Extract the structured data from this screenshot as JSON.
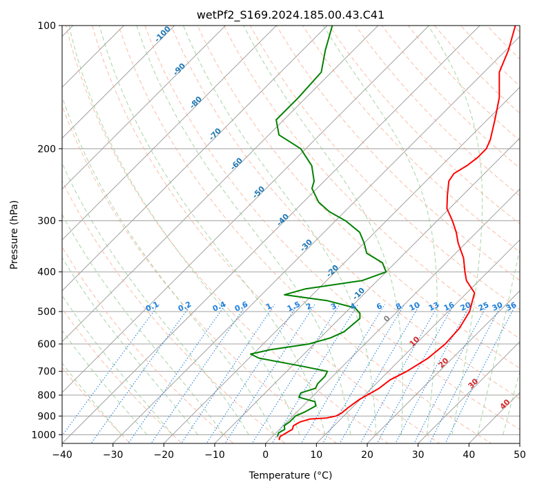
{
  "chart_data": {
    "type": "line",
    "chart_kind": "skew-T log-P diagram",
    "title": "wetPf2_S169.2024.185.00.43.C41",
    "xlabel": "Temperature (°C)",
    "ylabel": "Pressure (hPa)",
    "xlim": [
      -40,
      50
    ],
    "ylim": [
      1050,
      100
    ],
    "y_scale": "log",
    "grid": true,
    "x_ticks": [
      -40,
      -30,
      -20,
      -10,
      0,
      10,
      20,
      30,
      40,
      50
    ],
    "y_ticks": [
      100,
      200,
      300,
      400,
      500,
      600,
      700,
      800,
      900,
      1000
    ],
    "series": [
      {
        "role": "temperature",
        "color": "#ff0000",
        "points": [
          [
            1030,
            2
          ],
          [
            1010,
            1.5
          ],
          [
            990,
            2
          ],
          [
            970,
            2.5
          ],
          [
            950,
            2
          ],
          [
            930,
            2.6
          ],
          [
            915,
            4
          ],
          [
            910,
            7
          ],
          [
            900,
            8.5
          ],
          [
            885,
            9
          ],
          [
            860,
            9.2
          ],
          [
            820,
            9.8
          ],
          [
            800,
            10.5
          ],
          [
            770,
            11.5
          ],
          [
            735,
            12
          ],
          [
            700,
            13.6
          ],
          [
            650,
            15.2
          ],
          [
            600,
            15.8
          ],
          [
            550,
            15.5
          ],
          [
            500,
            14.2
          ],
          [
            450,
            11.5
          ],
          [
            420,
            7.5
          ],
          [
            400,
            5.5
          ],
          [
            370,
            2.5
          ],
          [
            340,
            -1.5
          ],
          [
            320,
            -4
          ],
          [
            300,
            -7
          ],
          [
            280,
            -10.5
          ],
          [
            260,
            -13
          ],
          [
            240,
            -15.5
          ],
          [
            230,
            -16
          ],
          [
            220,
            -15
          ],
          [
            210,
            -14.5
          ],
          [
            200,
            -14.5
          ],
          [
            190,
            -15.5
          ],
          [
            170,
            -18.5
          ],
          [
            150,
            -22
          ],
          [
            130,
            -27
          ],
          [
            115,
            -29.5
          ],
          [
            100,
            -33
          ]
        ]
      },
      {
        "role": "dewpoint",
        "color": "#008000",
        "points": [
          [
            1010,
            1
          ],
          [
            990,
            0.5
          ],
          [
            970,
            1
          ],
          [
            950,
            0.2
          ],
          [
            930,
            0.5
          ],
          [
            900,
            0.5
          ],
          [
            880,
            1.5
          ],
          [
            850,
            2.5
          ],
          [
            830,
            1.5
          ],
          [
            810,
            -2.5
          ],
          [
            790,
            -3
          ],
          [
            770,
            -1
          ],
          [
            750,
            -1.5
          ],
          [
            720,
            -1.5
          ],
          [
            700,
            -2
          ],
          [
            680,
            -8
          ],
          [
            650,
            -18
          ],
          [
            635,
            -20.5
          ],
          [
            620,
            -17.5
          ],
          [
            600,
            -11
          ],
          [
            580,
            -8
          ],
          [
            560,
            -6.5
          ],
          [
            520,
            -6
          ],
          [
            505,
            -7
          ],
          [
            490,
            -9
          ],
          [
            470,
            -16
          ],
          [
            455,
            -25.5
          ],
          [
            440,
            -22.5
          ],
          [
            420,
            -13
          ],
          [
            400,
            -10
          ],
          [
            380,
            -12.5
          ],
          [
            360,
            -17.5
          ],
          [
            340,
            -20
          ],
          [
            320,
            -23
          ],
          [
            300,
            -28
          ],
          [
            285,
            -33
          ],
          [
            270,
            -37
          ],
          [
            250,
            -41
          ],
          [
            240,
            -42
          ],
          [
            220,
            -45.5
          ],
          [
            200,
            -51
          ],
          [
            185,
            -58
          ],
          [
            170,
            -61.5
          ],
          [
            150,
            -61.5
          ],
          [
            130,
            -62
          ],
          [
            115,
            -65.5
          ],
          [
            100,
            -69
          ]
        ]
      }
    ],
    "dry_adiabat_labels": [
      "-100",
      "-90",
      "-80",
      "-70",
      "-60",
      "-50",
      "-40",
      "-30",
      "-20",
      "-10"
    ],
    "moist_adiabat_labels": [
      "0",
      "10",
      "20",
      "30",
      "40"
    ],
    "mixing_ratio_labels": [
      "0.1",
      "0.2",
      "0.4",
      "0.6",
      "1",
      "1.5",
      "2",
      "3",
      "4",
      "6",
      "8",
      "10",
      "13",
      "16",
      "20",
      "25",
      "30",
      "36"
    ],
    "colors": {
      "temperature": "#ff0000",
      "dewpoint": "#008000",
      "isotherm": "#a0a0a0",
      "dry_adiabat": "#f7a687",
      "moist_adiabat": "#88c487",
      "mixing_ratio": "#1f7fdc",
      "dry_adiabat_label": "#1f77b4",
      "moist_adiabat_label": "#d62728"
    }
  }
}
